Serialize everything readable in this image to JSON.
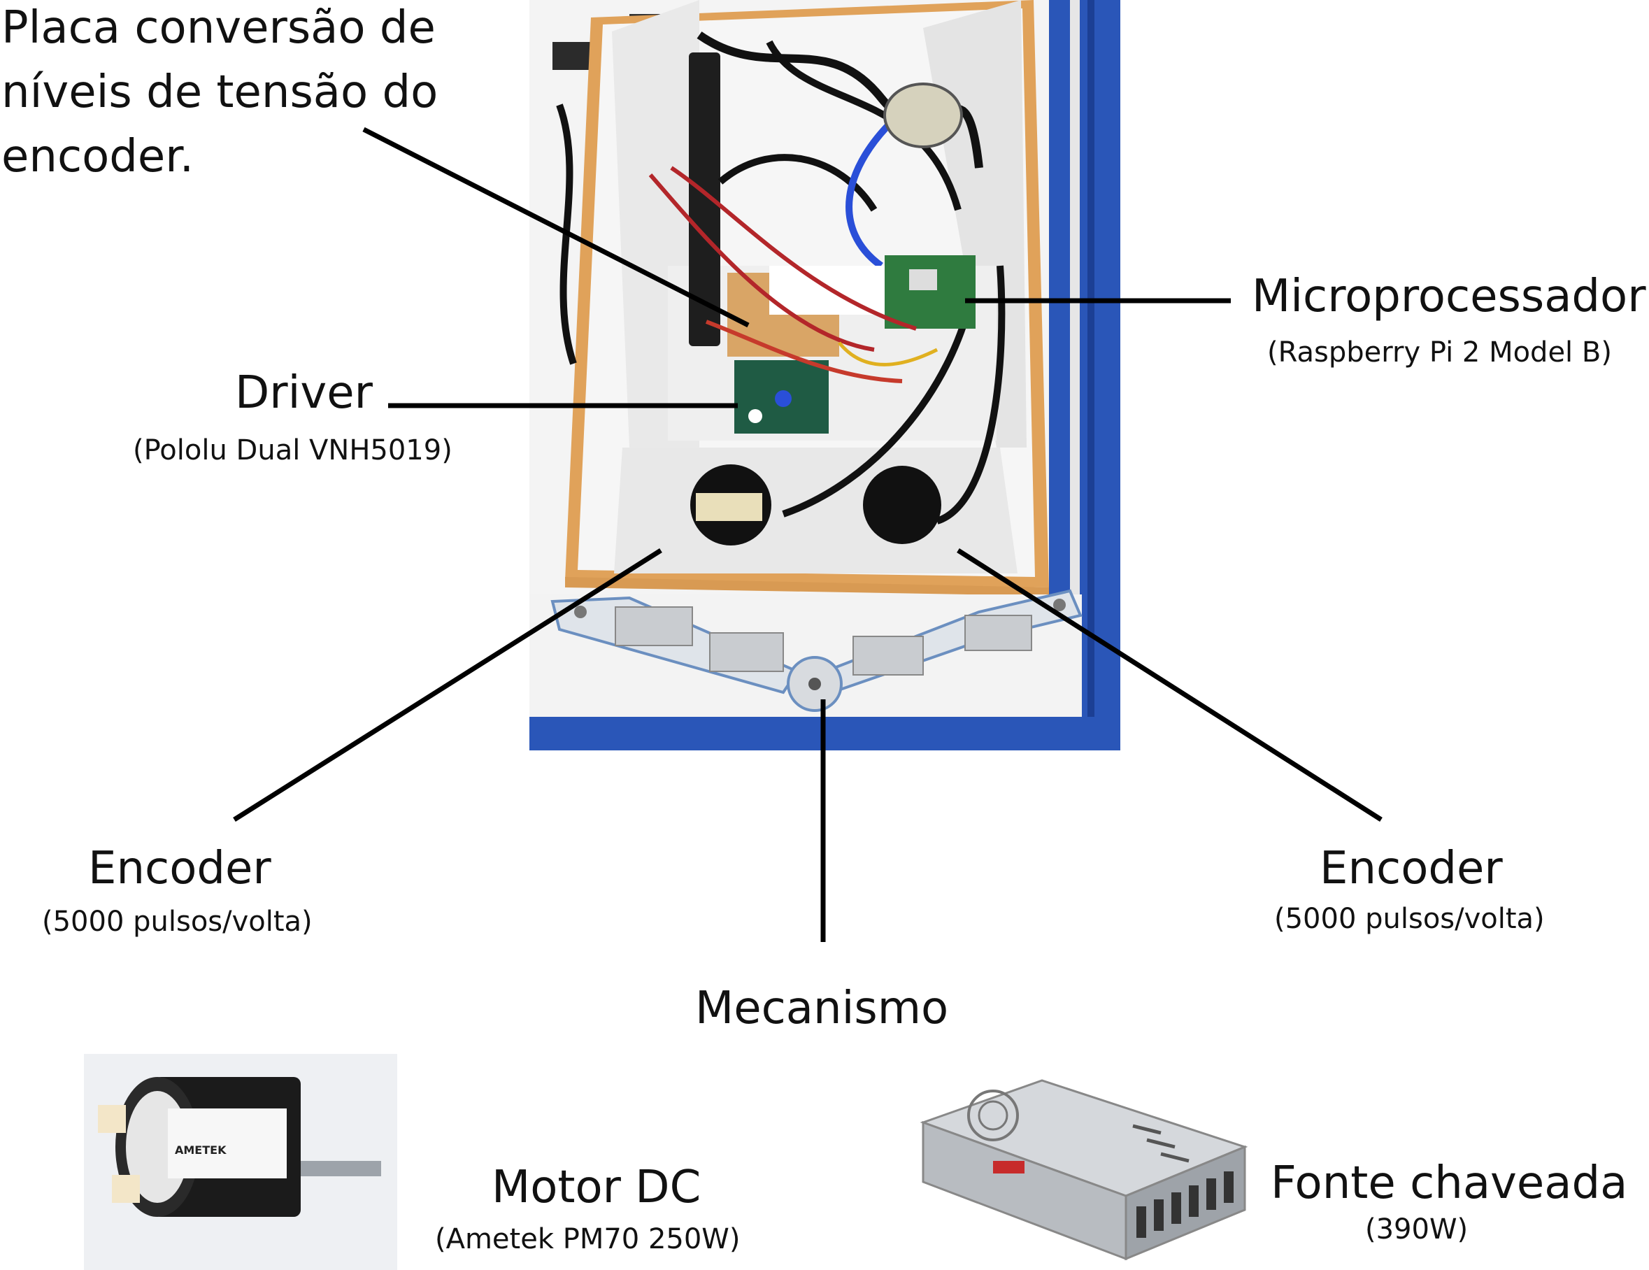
{
  "labels": {
    "placa": [
      "Placa conversão de",
      "níveis de tensão do",
      "encoder."
    ],
    "micro_title": "Microprocessador",
    "micro_sub": "(Raspberry Pi 2 Model B)",
    "driver_title": "Driver",
    "driver_sub": "(Pololu Dual VNH5019)",
    "encoder_left_title": "Encoder",
    "encoder_left_sub": "(5000 pulsos/volta)",
    "encoder_right_title": "Encoder",
    "encoder_right_sub": "(5000 pulsos/volta)",
    "mecanismo": "Mecanismo",
    "motor_title": "Motor DC",
    "motor_sub": "(Ametek PM70 250W)",
    "fonte_title": "Fonte chaveada",
    "fonte_sub": "(390W)"
  },
  "motor_brand": "AMETEK",
  "colors": {
    "frame_blue": "#2a56b8",
    "wood": "#e0a25a",
    "panel": "#f1f1f1",
    "pcb_green": "#2f7b3f",
    "wire_red": "#b3262a",
    "wire_blue": "#2a4fd8",
    "metal": "#c9ccd0"
  }
}
